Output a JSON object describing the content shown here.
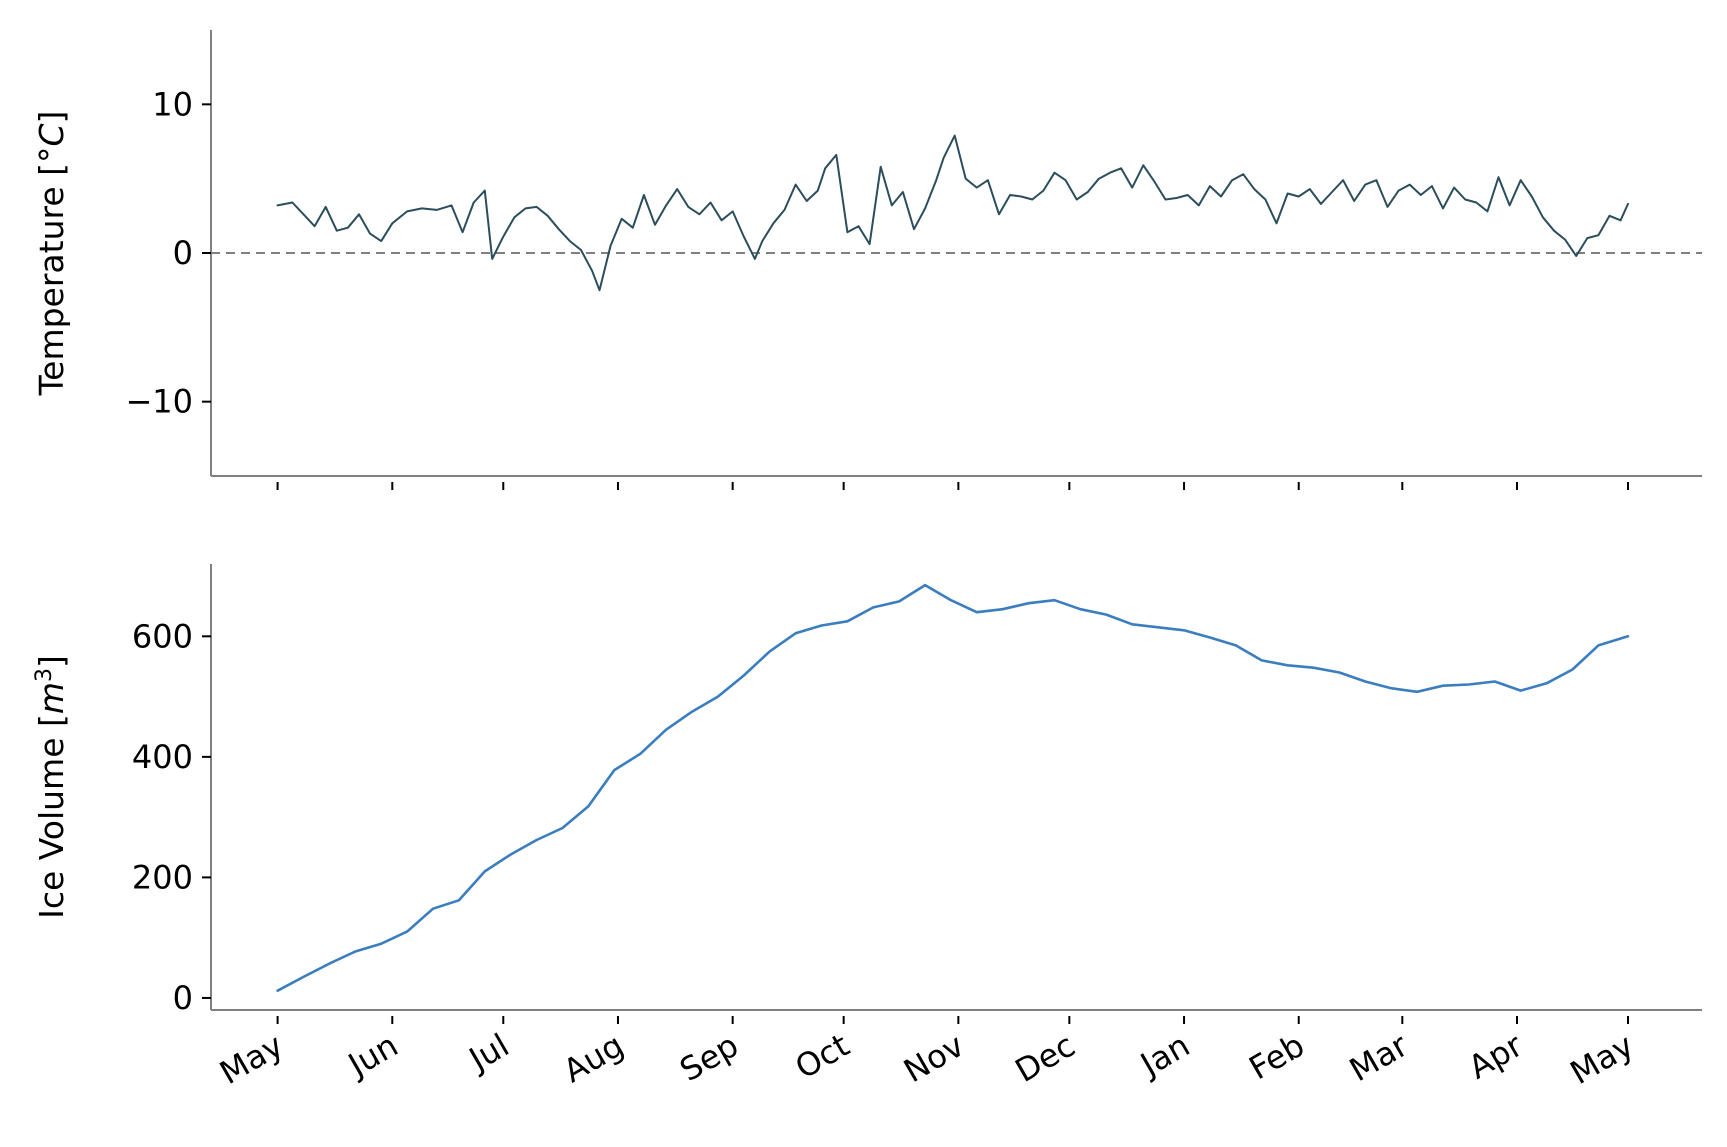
{
  "chart_data": [
    {
      "type": "line",
      "ylabel": "Temperature [°C]",
      "ylabel_text": "Temperature [°",
      "ylabel_unit": "C",
      "ylabel_close": "]",
      "ylim": [
        -15,
        15
      ],
      "yticks": [
        10,
        0,
        -10
      ],
      "ytick_labels": [
        "10",
        "0",
        "−10"
      ],
      "xlim": [
        "2018-04-13",
        "2019-05-21"
      ],
      "reference_line": {
        "y": 0,
        "style": "dashed",
        "color": "#808080"
      },
      "series": [
        {
          "color": "#2b4d5c",
          "x": [
            "2018-05-01",
            "2018-05-05",
            "2018-05-08",
            "2018-05-11",
            "2018-05-14",
            "2018-05-17",
            "2018-05-20",
            "2018-05-23",
            "2018-05-26",
            "2018-05-29",
            "2018-06-01",
            "2018-06-05",
            "2018-06-09",
            "2018-06-13",
            "2018-06-17",
            "2018-06-20",
            "2018-06-23",
            "2018-06-26",
            "2018-06-28",
            "2018-07-01",
            "2018-07-04",
            "2018-07-07",
            "2018-07-10",
            "2018-07-13",
            "2018-07-16",
            "2018-07-19",
            "2018-07-22",
            "2018-07-25",
            "2018-07-27",
            "2018-07-30",
            "2018-08-02",
            "2018-08-05",
            "2018-08-08",
            "2018-08-11",
            "2018-08-14",
            "2018-08-17",
            "2018-08-20",
            "2018-08-23",
            "2018-08-26",
            "2018-08-29",
            "2018-09-01",
            "2018-09-04",
            "2018-09-07",
            "2018-09-09",
            "2018-09-12",
            "2018-09-15",
            "2018-09-18",
            "2018-09-21",
            "2018-09-24",
            "2018-09-26",
            "2018-09-29",
            "2018-10-02",
            "2018-10-05",
            "2018-10-08",
            "2018-10-11",
            "2018-10-14",
            "2018-10-17",
            "2018-10-20",
            "2018-10-23",
            "2018-10-26",
            "2018-10-28",
            "2018-10-31",
            "2018-11-03",
            "2018-11-06",
            "2018-11-09",
            "2018-11-12",
            "2018-11-15",
            "2018-11-18",
            "2018-11-21",
            "2018-11-24",
            "2018-11-27",
            "2018-11-30",
            "2018-12-03",
            "2018-12-06",
            "2018-12-09",
            "2018-12-12",
            "2018-12-15",
            "2018-12-18",
            "2018-12-21",
            "2018-12-24",
            "2018-12-27",
            "2018-12-30",
            "2019-01-02",
            "2019-01-05",
            "2019-01-08",
            "2019-01-11",
            "2019-01-14",
            "2019-01-17",
            "2019-01-20",
            "2019-01-23",
            "2019-01-26",
            "2019-01-29",
            "2019-02-01",
            "2019-02-04",
            "2019-02-07",
            "2019-02-10",
            "2019-02-13",
            "2019-02-16",
            "2019-02-19",
            "2019-02-22",
            "2019-02-25",
            "2019-02-28",
            "2019-03-03",
            "2019-03-06",
            "2019-03-09",
            "2019-03-12",
            "2019-03-15",
            "2019-03-18",
            "2019-03-21",
            "2019-03-24",
            "2019-03-27",
            "2019-03-30",
            "2019-04-02",
            "2019-04-05",
            "2019-04-08",
            "2019-04-11",
            "2019-04-14",
            "2019-04-17",
            "2019-04-20",
            "2019-04-23",
            "2019-04-26",
            "2019-04-29",
            "2019-05-01"
          ],
          "values": [
            3.2,
            3.4,
            2.6,
            1.8,
            3.1,
            1.5,
            1.7,
            2.6,
            1.3,
            0.8,
            2.0,
            2.8,
            3.0,
            2.9,
            3.2,
            1.4,
            3.4,
            4.2,
            -0.4,
            1.1,
            2.4,
            3.0,
            3.1,
            2.5,
            1.6,
            0.8,
            0.2,
            -1.2,
            -2.5,
            0.5,
            2.3,
            1.7,
            3.9,
            1.9,
            3.2,
            4.3,
            3.1,
            2.6,
            3.4,
            2.2,
            2.8,
            1.1,
            -0.4,
            0.8,
            2.0,
            2.9,
            4.6,
            3.5,
            4.2,
            5.7,
            6.6,
            1.4,
            1.8,
            0.6,
            5.8,
            3.2,
            4.1,
            1.6,
            3.0,
            4.9,
            6.4,
            7.9,
            5.0,
            4.4,
            4.9,
            2.6,
            3.9,
            3.8,
            3.6,
            4.2,
            5.4,
            4.9,
            3.6,
            4.1,
            5.0,
            5.4,
            5.7,
            4.4,
            5.9,
            4.8,
            3.6,
            3.7,
            3.9,
            3.2,
            4.5,
            3.8,
            4.9,
            5.3,
            4.3,
            3.6,
            2.0,
            4.0,
            3.8,
            4.3,
            3.3,
            4.1,
            4.9,
            3.5,
            4.6,
            4.9,
            3.1,
            4.2,
            4.6,
            3.9,
            4.5,
            3.0,
            4.4,
            3.6,
            3.4,
            2.8,
            5.1,
            3.2,
            4.9,
            3.8,
            2.4,
            1.5,
            0.9,
            -0.2,
            1.0,
            1.2,
            2.5,
            2.2,
            3.3
          ]
        }
      ]
    },
    {
      "type": "line",
      "ylabel": "Ice Volume [m³]",
      "ylabel_text": "Ice Volume [",
      "ylabel_unit": "m",
      "ylabel_power": "3",
      "ylabel_close": "]",
      "ylim": [
        -20,
        720
      ],
      "yticks": [
        0,
        200,
        400,
        600
      ],
      "ytick_labels": [
        "0",
        "200",
        "400",
        "600"
      ],
      "xlim": [
        "2018-04-13",
        "2019-05-21"
      ],
      "xticks": [
        "2018-05-01",
        "2018-06-01",
        "2018-07-01",
        "2018-08-01",
        "2018-09-01",
        "2018-10-01",
        "2018-11-01",
        "2018-12-01",
        "2019-01-01",
        "2019-02-01",
        "2019-03-01",
        "2019-04-01",
        "2019-05-01"
      ],
      "xtick_labels": [
        "May",
        "Jun",
        "Jul",
        "Aug",
        "Sep",
        "Oct",
        "Nov",
        "Dec",
        "Jan",
        "Feb",
        "Mar",
        "Apr",
        "May"
      ],
      "series": [
        {
          "color": "#3a7ebf",
          "x": [
            "2018-05-01",
            "2018-05-08",
            "2018-05-15",
            "2018-05-22",
            "2018-05-29",
            "2018-06-05",
            "2018-06-12",
            "2018-06-19",
            "2018-06-26",
            "2018-07-03",
            "2018-07-10",
            "2018-07-17",
            "2018-07-24",
            "2018-07-31",
            "2018-08-07",
            "2018-08-14",
            "2018-08-21",
            "2018-08-28",
            "2018-09-04",
            "2018-09-11",
            "2018-09-18",
            "2018-09-25",
            "2018-10-02",
            "2018-10-09",
            "2018-10-16",
            "2018-10-23",
            "2018-10-30",
            "2018-11-06",
            "2018-11-13",
            "2018-11-20",
            "2018-11-27",
            "2018-12-04",
            "2018-12-11",
            "2018-12-18",
            "2018-12-25",
            "2019-01-01",
            "2019-01-08",
            "2019-01-15",
            "2019-01-22",
            "2019-01-29",
            "2019-02-05",
            "2019-02-12",
            "2019-02-19",
            "2019-02-26",
            "2019-03-05",
            "2019-03-12",
            "2019-03-19",
            "2019-03-26",
            "2019-04-02",
            "2019-04-09",
            "2019-04-16",
            "2019-04-23",
            "2019-05-01"
          ],
          "values": [
            12,
            35,
            57,
            77,
            90,
            110,
            148,
            162,
            210,
            238,
            262,
            282,
            318,
            378,
            405,
            445,
            475,
            500,
            535,
            575,
            605,
            618,
            625,
            648,
            658,
            685,
            660,
            640,
            645,
            655,
            660,
            645,
            636,
            620,
            615,
            610,
            598,
            585,
            560,
            552,
            548,
            540,
            525,
            514,
            508,
            518,
            520,
            525,
            510,
            522,
            545,
            585,
            600
          ]
        }
      ]
    }
  ]
}
